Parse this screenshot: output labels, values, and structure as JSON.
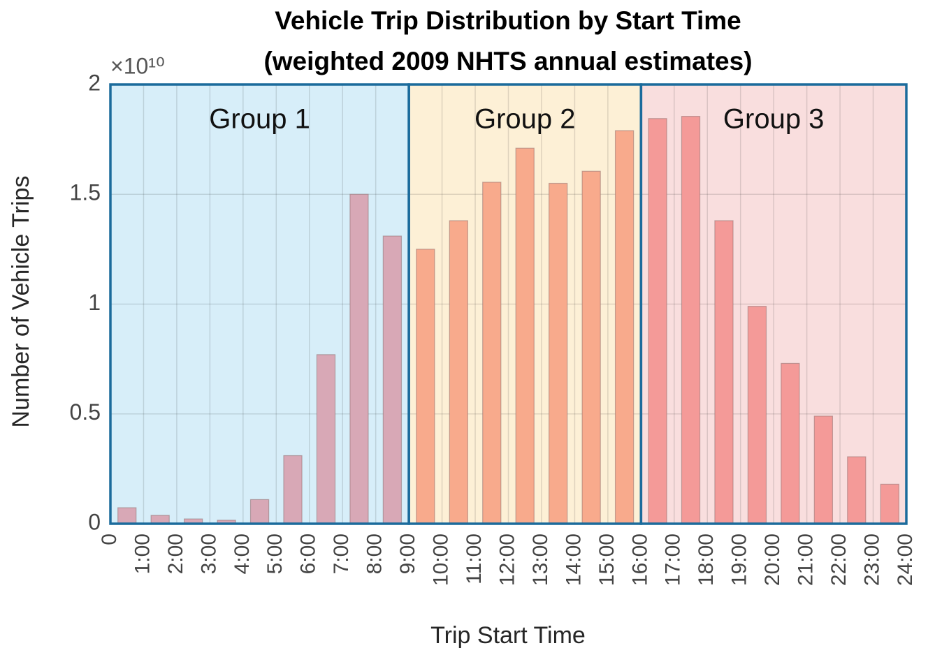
{
  "chart_data": {
    "type": "histogram",
    "title": "Vehicle Trip Distribution by Start Time",
    "subtitle": "(weighted 2009 NHTS annual estimates)",
    "xlabel": "Trip Start Time",
    "ylabel": "Number of Vehicle Trips",
    "y_scale_label": "×10¹⁰",
    "bins": [
      0,
      1,
      2,
      3,
      4,
      5,
      6,
      7,
      8,
      9,
      10,
      11,
      12,
      13,
      14,
      15,
      16,
      17,
      18,
      19,
      20,
      21,
      22,
      23,
      24
    ],
    "values": [
      0.073,
      0.038,
      0.022,
      0.016,
      0.11,
      0.31,
      0.77,
      1.5,
      1.31,
      1.25,
      1.38,
      1.555,
      1.71,
      1.55,
      1.605,
      1.79,
      1.845,
      1.855,
      1.38,
      0.99,
      0.73,
      0.49,
      0.305,
      0.18
    ],
    "xlim": [
      0,
      24
    ],
    "xticks": [
      0,
      {
        "value": 1,
        "label": "1:00"
      },
      {
        "value": 2,
        "label": "2:00"
      },
      {
        "value": 3,
        "label": "3:00"
      },
      {
        "value": 4,
        "label": "4:00"
      },
      {
        "value": 5,
        "label": "5:00"
      },
      {
        "value": 6,
        "label": "6:00"
      },
      {
        "value": 7,
        "label": "7:00"
      },
      {
        "value": 8,
        "label": "8:00"
      },
      {
        "value": 9,
        "label": "9:00"
      },
      {
        "value": 10,
        "label": "10:00"
      },
      {
        "value": 11,
        "label": "11:00"
      },
      {
        "value": 12,
        "label": "12:00"
      },
      {
        "value": 13,
        "label": "13:00"
      },
      {
        "value": 14,
        "label": "14:00"
      },
      {
        "value": 15,
        "label": "15:00"
      },
      {
        "value": 16,
        "label": "16:00"
      },
      {
        "value": 17,
        "label": "17:00"
      },
      {
        "value": 18,
        "label": "18:00"
      },
      {
        "value": 19,
        "label": "19:00"
      },
      {
        "value": 20,
        "label": "20:00"
      },
      {
        "value": 21,
        "label": "21:00"
      },
      {
        "value": 22,
        "label": "22:00"
      },
      {
        "value": 23,
        "label": "23:00"
      },
      {
        "value": 24,
        "label": "24:00"
      }
    ],
    "ylim": [
      0,
      2
    ],
    "yticks": [
      0,
      0.5,
      1,
      1.5,
      2
    ],
    "grid": true,
    "groups": [
      {
        "label": "Group 1",
        "range": [
          0,
          9
        ],
        "color": "#d7eef9",
        "bar_color": "#d8a8b6"
      },
      {
        "label": "Group 2",
        "range": [
          9,
          16
        ],
        "color": "#fdf0d6",
        "bar_color": "#f8aa8c"
      },
      {
        "label": "Group 3",
        "range": [
          16,
          24
        ],
        "color": "#f9dede",
        "bar_color": "#f49a98"
      }
    ],
    "group_border_color": "#1b6b9c"
  }
}
